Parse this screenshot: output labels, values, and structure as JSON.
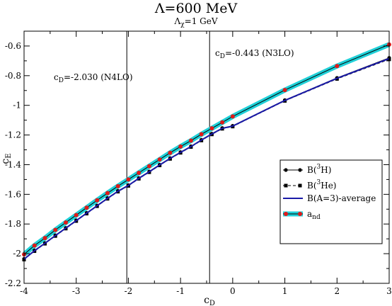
{
  "chart_data": {
    "type": "line",
    "title": "Λ=600 MeV",
    "subtitle": "Λχ=1 GeV",
    "subtitle_parts": {
      "main": "Λ",
      "sub": "χ",
      "rest": "=1 GeV"
    },
    "xlabel": "c_D",
    "xlabel_parts": {
      "main": "c",
      "sub": "D"
    },
    "ylabel": "c_E",
    "ylabel_parts": {
      "main": "c",
      "sub": "E"
    },
    "xlim": [
      -4,
      3
    ],
    "ylim": [
      -2.2,
      -0.5
    ],
    "xticks": [
      -4,
      -3,
      -2,
      -1,
      0,
      1,
      2,
      3
    ],
    "yticks": [
      -2.2,
      -2,
      -1.8,
      -1.6,
      -1.4,
      -1.2,
      -1,
      -0.8,
      -0.6
    ],
    "grid": false,
    "legend_position": "right, lower-middle",
    "vertical_lines": [
      {
        "x": -2.03,
        "label": "c_D=-2.030 (N4LO)",
        "label_parts": {
          "main": "c",
          "sub": "D",
          "rest": "=-2.030 (N4LO)"
        }
      },
      {
        "x": -0.443,
        "label": "c_D=-0.443 (N3LO)",
        "label_parts": {
          "main": "c",
          "sub": "D",
          "rest": "=-0.443 (N3LO)"
        }
      }
    ],
    "series": [
      {
        "name": "B(3H)",
        "legend_parts": {
          "pre": "B(",
          "sup": "3",
          "post": "H)"
        },
        "style": "solid-black-circles",
        "x": [
          -4.0,
          -3.8,
          -3.6,
          -3.4,
          -3.2,
          -3.0,
          -2.8,
          -2.6,
          -2.4,
          -2.2,
          -2.0,
          -1.8,
          -1.6,
          -1.4,
          -1.2,
          -1.0,
          -0.8,
          -0.6,
          -0.4,
          -0.2,
          0.0,
          1.0,
          2.0,
          3.0
        ],
        "values": [
          -2.035,
          -1.978,
          -1.928,
          -1.876,
          -1.826,
          -1.775,
          -1.725,
          -1.675,
          -1.625,
          -1.577,
          -1.538,
          -1.49,
          -1.446,
          -1.4,
          -1.356,
          -1.315,
          -1.276,
          -1.232,
          -1.191,
          -1.153,
          -1.138,
          -0.965,
          -0.815,
          -0.68
        ]
      },
      {
        "name": "B(3He)",
        "legend_parts": {
          "pre": "B(",
          "sup": "3",
          "post": "He)"
        },
        "style": "dashed-black-squares",
        "x": [
          -4.0,
          -3.8,
          -3.6,
          -3.4,
          -3.2,
          -3.0,
          -2.8,
          -2.6,
          -2.4,
          -2.2,
          -2.0,
          -1.8,
          -1.6,
          -1.4,
          -1.2,
          -1.0,
          -0.8,
          -0.6,
          -0.4,
          -0.2,
          0.0,
          1.0,
          2.0,
          3.0
        ],
        "values": [
          -2.04,
          -1.983,
          -1.933,
          -1.881,
          -1.831,
          -1.78,
          -1.73,
          -1.68,
          -1.63,
          -1.582,
          -1.543,
          -1.495,
          -1.451,
          -1.405,
          -1.361,
          -1.32,
          -1.281,
          -1.237,
          -1.196,
          -1.158,
          -1.143,
          -0.97,
          -0.822,
          -0.69
        ]
      },
      {
        "name": "B(A=3)-average",
        "legend_parts": {
          "pre": "B(A=3)-average",
          "sup": "",
          "post": ""
        },
        "style": "solid-blue",
        "color": "#1a1aa8",
        "x": [
          -4.0,
          -3.8,
          -3.6,
          -3.4,
          -3.2,
          -3.0,
          -2.8,
          -2.6,
          -2.4,
          -2.2,
          -2.0,
          -1.8,
          -1.6,
          -1.4,
          -1.2,
          -1.0,
          -0.8,
          -0.6,
          -0.4,
          -0.2,
          0.0,
          1.0,
          2.0,
          3.0
        ],
        "values": [
          -2.037,
          -1.98,
          -1.93,
          -1.878,
          -1.828,
          -1.777,
          -1.727,
          -1.677,
          -1.627,
          -1.579,
          -1.54,
          -1.492,
          -1.448,
          -1.402,
          -1.358,
          -1.317,
          -1.278,
          -1.234,
          -1.193,
          -1.155,
          -1.14,
          -0.967,
          -0.818,
          -0.685
        ]
      },
      {
        "name": "a_nd",
        "legend_parts": {
          "main": "a",
          "sub": "nd"
        },
        "style": "cyan-band-red-dots",
        "band_color": "#20d0d8",
        "marker_color": "#e01a1a",
        "x": [
          -4.0,
          -3.8,
          -3.6,
          -3.4,
          -3.2,
          -3.0,
          -2.8,
          -2.6,
          -2.4,
          -2.2,
          -2.0,
          -1.8,
          -1.6,
          -1.4,
          -1.2,
          -1.0,
          -0.8,
          -0.6,
          -0.4,
          -0.2,
          0.0,
          1.0,
          2.0,
          3.0
        ],
        "values": [
          -2.005,
          -1.945,
          -1.895,
          -1.84,
          -1.79,
          -1.74,
          -1.69,
          -1.64,
          -1.592,
          -1.545,
          -1.5,
          -1.455,
          -1.41,
          -1.365,
          -1.32,
          -1.278,
          -1.238,
          -1.195,
          -1.155,
          -1.115,
          -1.075,
          -0.897,
          -0.735,
          -0.59
        ]
      }
    ]
  }
}
